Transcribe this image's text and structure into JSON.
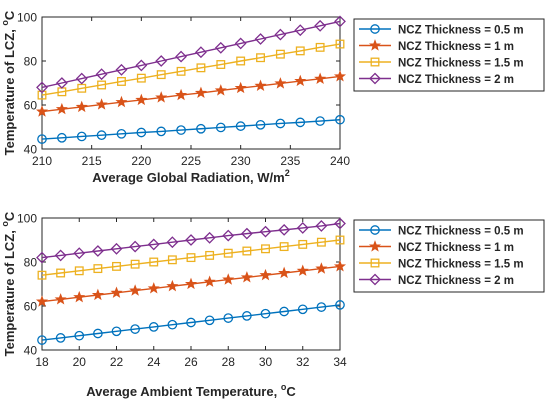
{
  "chart_data": [
    {
      "type": "line",
      "xlabel": "Average Global Radiation, W/m",
      "xlabel_sup": "2",
      "ylabel": "Temperature of LCZ,",
      "ylabel_sup": "o",
      "ylabel_unit": "C",
      "xlim": [
        210,
        240
      ],
      "ylim": [
        40,
        100
      ],
      "xticks": [
        210,
        215,
        220,
        225,
        230,
        235,
        240
      ],
      "yticks": [
        40,
        60,
        80,
        100
      ],
      "grid": false,
      "legend_position": "outside-right",
      "x": [
        210,
        212,
        214,
        216,
        218,
        220,
        222,
        224,
        226,
        228,
        230,
        232,
        234,
        236,
        238,
        240
      ],
      "series": [
        {
          "name": "NCZ Thickness = 0.5 m",
          "color": "#0072BD",
          "marker": "circle",
          "values": [
            44.5,
            45.1,
            45.7,
            46.3,
            46.9,
            47.5,
            48.0,
            48.6,
            49.2,
            49.8,
            50.4,
            51.0,
            51.6,
            52.1,
            52.7,
            53.3
          ]
        },
        {
          "name": "NCZ Thickness = 1 m",
          "color": "#D95319",
          "marker": "star",
          "values": [
            57.0,
            58.1,
            59.1,
            60.2,
            61.3,
            62.3,
            63.4,
            64.5,
            65.5,
            66.6,
            67.7,
            68.7,
            69.8,
            70.9,
            71.9,
            73.0
          ]
        },
        {
          "name": "NCZ Thickness = 1.5 m",
          "color": "#EDB120",
          "marker": "square",
          "values": [
            64.5,
            66.0,
            67.6,
            69.1,
            70.7,
            72.2,
            73.8,
            75.3,
            76.9,
            78.4,
            80.0,
            81.5,
            83.1,
            84.6,
            86.2,
            87.7
          ]
        },
        {
          "name": "NCZ Thickness = 2 m",
          "color": "#7E2F8E",
          "marker": "diamond",
          "values": [
            68.0,
            70.0,
            72.0,
            74.0,
            76.0,
            78.0,
            80.0,
            82.0,
            84.0,
            86.0,
            88.0,
            90.0,
            92.0,
            94.0,
            96.0,
            98.0
          ]
        }
      ]
    },
    {
      "type": "line",
      "xlabel": "Average Ambient Temperature,",
      "xlabel_sup": "o",
      "xlabel_unit": "C",
      "ylabel": "Temperature of LCZ,",
      "ylabel_sup": "o",
      "ylabel_unit": "C",
      "xlim": [
        18,
        34
      ],
      "ylim": [
        40,
        100
      ],
      "xticks": [
        18,
        20,
        22,
        24,
        26,
        28,
        30,
        32,
        34
      ],
      "yticks": [
        40,
        60,
        80,
        100
      ],
      "grid": false,
      "legend_position": "outside-right",
      "x": [
        18,
        19,
        20,
        21,
        22,
        23,
        24,
        25,
        26,
        27,
        28,
        29,
        30,
        31,
        32,
        33,
        34
      ],
      "series": [
        {
          "name": "NCZ Thickness = 0.5 m",
          "color": "#0072BD",
          "marker": "circle",
          "values": [
            44.5,
            45.5,
            46.5,
            47.5,
            48.5,
            49.5,
            50.5,
            51.5,
            52.5,
            53.5,
            54.5,
            55.5,
            56.5,
            57.5,
            58.5,
            59.5,
            60.5
          ]
        },
        {
          "name": "NCZ Thickness = 1 m",
          "color": "#D95319",
          "marker": "star",
          "values": [
            62.0,
            63.0,
            64.0,
            65.0,
            66.0,
            67.0,
            68.0,
            69.0,
            70.0,
            71.0,
            72.0,
            73.0,
            74.0,
            75.0,
            76.0,
            77.0,
            78.0
          ]
        },
        {
          "name": "NCZ Thickness = 1.5 m",
          "color": "#EDB120",
          "marker": "square",
          "values": [
            74.0,
            75.0,
            76.0,
            77.0,
            78.0,
            79.0,
            80.0,
            81.0,
            82.0,
            83.0,
            84.0,
            85.0,
            86.0,
            87.0,
            88.0,
            89.0,
            90.0
          ]
        },
        {
          "name": "NCZ Thickness = 2 m",
          "color": "#7E2F8E",
          "marker": "diamond",
          "values": [
            82.0,
            83.0,
            84.0,
            85.0,
            86.0,
            87.0,
            88.0,
            89.0,
            90.0,
            91.0,
            92.0,
            92.9,
            93.8,
            94.6,
            95.5,
            96.4,
            97.5
          ]
        }
      ]
    }
  ]
}
